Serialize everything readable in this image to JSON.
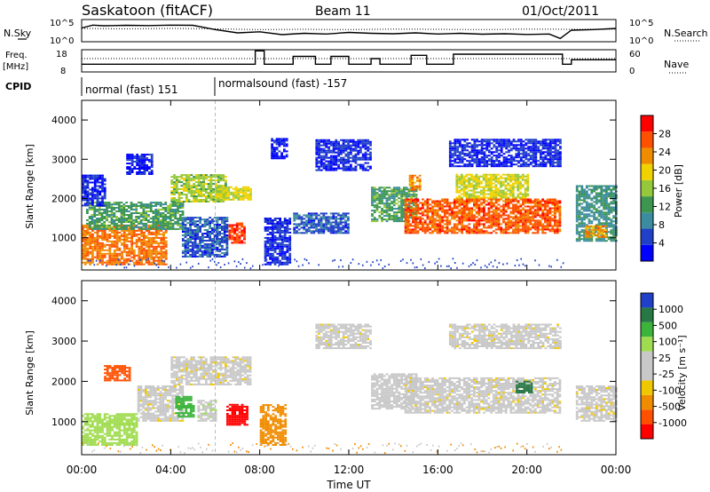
{
  "header": {
    "station": "Saskatoon (fitACF)",
    "beam": "Beam 11",
    "date": "01/Oct/2011"
  },
  "left_labels": {
    "nsky": "N.Sky",
    "freq_line1": "Freq.",
    "freq_line2": "[MHz]",
    "cpid": "CPID"
  },
  "right_labels": {
    "nsearch": "N.Search",
    "nave": "Nave"
  },
  "colors": {
    "power_scale": [
      "#0000ff",
      "#2040c8",
      "#3c8ca0",
      "#3c9650",
      "#96c83c",
      "#f0d200",
      "#f08c00",
      "#ff5000",
      "#ff0000"
    ],
    "velocity_scale": [
      "#2040c8",
      "#287846",
      "#3cb43c",
      "#a0dc50",
      "#c8c8c8",
      "#c8c8c8",
      "#f0c800",
      "#f08c00",
      "#ff5000",
      "#ff0000"
    ]
  },
  "chart_data": [
    {
      "type": "line",
      "name": "noise-panel",
      "x_unit": "hours UT",
      "xlim": [
        0,
        24
      ],
      "left_axis": {
        "label": "N.Sky",
        "ticks": [
          "10^5",
          "10^0"
        ]
      },
      "right_axis": {
        "label": "N.Search",
        "ticks": [
          "10^5",
          "10^0"
        ]
      },
      "series": [
        {
          "name": "N.Sky",
          "style": "solid",
          "x": [
            0,
            0.5,
            1,
            2,
            3,
            4,
            5,
            6,
            7,
            8,
            9,
            10,
            11,
            12,
            13,
            14,
            15,
            16,
            17,
            18,
            19,
            20,
            21,
            21.5,
            22,
            23,
            24
          ],
          "level": [
            0.62,
            0.75,
            0.72,
            0.74,
            0.73,
            0.75,
            0.74,
            0.55,
            0.4,
            0.45,
            0.32,
            0.38,
            0.35,
            0.42,
            0.38,
            0.36,
            0.4,
            0.35,
            0.38,
            0.34,
            0.36,
            0.33,
            0.35,
            0.15,
            0.52,
            0.55,
            0.6
          ]
        },
        {
          "name": "N.Search",
          "style": "dotted",
          "x": [
            0,
            2,
            4,
            6,
            8,
            10,
            12,
            14,
            16,
            18,
            20,
            22,
            24
          ],
          "level": [
            0.6,
            0.58,
            0.6,
            0.58,
            0.55,
            0.56,
            0.55,
            0.57,
            0.56,
            0.55,
            0.57,
            0.56,
            0.57
          ]
        }
      ]
    },
    {
      "type": "line",
      "name": "freq-panel",
      "x_unit": "hours UT",
      "xlim": [
        0,
        24
      ],
      "left_axis": {
        "label": "Freq. [MHz]",
        "ticks": [
          "18",
          "8"
        ]
      },
      "right_axis": {
        "label": "Nave",
        "ticks": [
          "60",
          "0"
        ]
      },
      "series": [
        {
          "name": "Freq.",
          "style": "solid",
          "x": [
            0,
            7.8,
            7.8,
            8.2,
            8.2,
            9.5,
            9.5,
            10.5,
            10.5,
            11.2,
            11.2,
            12.0,
            12.0,
            13.0,
            13.0,
            13.4,
            13.4,
            14.8,
            14.8,
            15.5,
            15.5,
            16.7,
            16.7,
            19.0,
            19.0,
            21.6,
            21.6,
            22.0,
            22.0,
            24.0
          ],
          "level": [
            0.35,
            0.35,
            0.95,
            0.95,
            0.35,
            0.35,
            0.7,
            0.7,
            0.35,
            0.35,
            0.7,
            0.7,
            0.35,
            0.35,
            0.6,
            0.6,
            0.35,
            0.35,
            0.75,
            0.75,
            0.35,
            0.35,
            0.8,
            0.8,
            0.8,
            0.8,
            0.35,
            0.35,
            0.55,
            0.55
          ]
        },
        {
          "name": "Nave",
          "style": "dotted",
          "x": [
            0,
            24
          ],
          "level": [
            0.6,
            0.6
          ]
        }
      ]
    },
    {
      "type": "table",
      "name": "cpid-bar",
      "segments": [
        {
          "label": "normal (fast) 151",
          "start": 0,
          "end": 6
        },
        {
          "label": "normalsound (fast) -157",
          "start": 6,
          "end": 24
        }
      ]
    },
    {
      "type": "heatmap",
      "name": "power-panel",
      "xlabel": "",
      "ylabel": "Slant Range [km]",
      "xlim": [
        0,
        24
      ],
      "ylim": [
        180,
        4500
      ],
      "yticks": [
        1000,
        2000,
        3000,
        4000
      ],
      "colorbar": {
        "label": "Power [dB]",
        "ticks": [
          4,
          8,
          12,
          16,
          20,
          24,
          28
        ]
      },
      "regions": [
        {
          "t0": 0.0,
          "t1": 3.8,
          "r0": 300,
          "r1": 1300,
          "value": 26
        },
        {
          "t0": 0.2,
          "t1": 4.5,
          "r0": 1200,
          "r1": 1900,
          "value": 14
        },
        {
          "t0": 0.0,
          "t1": 1.0,
          "r0": 1800,
          "r1": 2600,
          "value": 6
        },
        {
          "t0": 2.0,
          "t1": 3.2,
          "r0": 2600,
          "r1": 3100,
          "value": 5
        },
        {
          "t0": 4.0,
          "t1": 6.5,
          "r0": 1900,
          "r1": 2600,
          "value": 18
        },
        {
          "t0": 6.0,
          "t1": 7.6,
          "r0": 1950,
          "r1": 2300,
          "value": 20
        },
        {
          "t0": 6.6,
          "t1": 7.3,
          "r0": 850,
          "r1": 1350,
          "value": 30
        },
        {
          "t0": 4.5,
          "t1": 6.5,
          "r0": 500,
          "r1": 1500,
          "value": 8
        },
        {
          "t0": 8.2,
          "t1": 9.3,
          "r0": 300,
          "r1": 1500,
          "value": 6
        },
        {
          "t0": 8.5,
          "t1": 9.2,
          "r0": 3000,
          "r1": 3500,
          "value": 5
        },
        {
          "t0": 9.5,
          "t1": 12.0,
          "r0": 1100,
          "r1": 1600,
          "value": 8
        },
        {
          "t0": 10.5,
          "t1": 13.0,
          "r0": 2700,
          "r1": 3500,
          "value": 6
        },
        {
          "t0": 13.0,
          "t1": 15.0,
          "r0": 1400,
          "r1": 2300,
          "value": 14
        },
        {
          "t0": 14.7,
          "t1": 15.2,
          "r0": 2200,
          "r1": 2600,
          "value": 25
        },
        {
          "t0": 14.5,
          "t1": 21.5,
          "r0": 1100,
          "r1": 2000,
          "value": 28
        },
        {
          "t0": 16.8,
          "t1": 20.0,
          "r0": 2000,
          "r1": 2600,
          "value": 20
        },
        {
          "t0": 16.5,
          "t1": 21.5,
          "r0": 2800,
          "r1": 3500,
          "value": 6
        },
        {
          "t0": 22.2,
          "t1": 24.0,
          "r0": 900,
          "r1": 2300,
          "value": 12
        },
        {
          "t0": 22.6,
          "t1": 23.5,
          "r0": 1000,
          "r1": 1300,
          "value": 24
        }
      ]
    },
    {
      "type": "heatmap",
      "name": "velocity-panel",
      "xlabel": "Time UT",
      "ylabel": "Slant Range [km]",
      "xlim": [
        0,
        24
      ],
      "ylim": [
        180,
        4500
      ],
      "xticks": [
        "00:00",
        "04:00",
        "08:00",
        "12:00",
        "16:00",
        "20:00",
        "00:00"
      ],
      "yticks": [
        1000,
        2000,
        3000,
        4000
      ],
      "colorbar": {
        "label": "Velocity [m s⁻¹]",
        "ticks": [
          "1000",
          "500",
          "100",
          "25",
          "-25",
          "-100",
          "-500",
          "-1000"
        ]
      },
      "regions": [
        {
          "t0": 0.0,
          "t1": 2.5,
          "r0": 400,
          "r1": 1200,
          "value": 200
        },
        {
          "t0": 1.0,
          "t1": 2.2,
          "r0": 2000,
          "r1": 2400,
          "value": -300
        },
        {
          "t0": 2.5,
          "t1": 4.5,
          "r0": 1000,
          "r1": 1900,
          "value": 0
        },
        {
          "t0": 4.0,
          "t1": 7.6,
          "r0": 1900,
          "r1": 2600,
          "value": 0
        },
        {
          "t0": 4.2,
          "t1": 5.0,
          "r0": 1100,
          "r1": 1600,
          "value": 300
        },
        {
          "t0": 5.2,
          "t1": 6.0,
          "r0": 1000,
          "r1": 1500,
          "value": 80
        },
        {
          "t0": 6.5,
          "t1": 7.4,
          "r0": 900,
          "r1": 1400,
          "value": -600
        },
        {
          "t0": 8.0,
          "t1": 9.2,
          "r0": 400,
          "r1": 1400,
          "value": -200
        },
        {
          "t0": 10.5,
          "t1": 13.0,
          "r0": 2800,
          "r1": 3400,
          "value": 0
        },
        {
          "t0": 13.0,
          "t1": 15.0,
          "r0": 1300,
          "r1": 2200,
          "value": 60
        },
        {
          "t0": 14.5,
          "t1": 21.5,
          "r0": 1200,
          "r1": 2100,
          "value": 0
        },
        {
          "t0": 16.5,
          "t1": 21.5,
          "r0": 2800,
          "r1": 3400,
          "value": 0
        },
        {
          "t0": 19.5,
          "t1": 20.2,
          "r0": 1700,
          "r1": 2000,
          "value": 800
        },
        {
          "t0": 22.2,
          "t1": 24.0,
          "r0": 1000,
          "r1": 1900,
          "value": 0
        }
      ]
    }
  ]
}
